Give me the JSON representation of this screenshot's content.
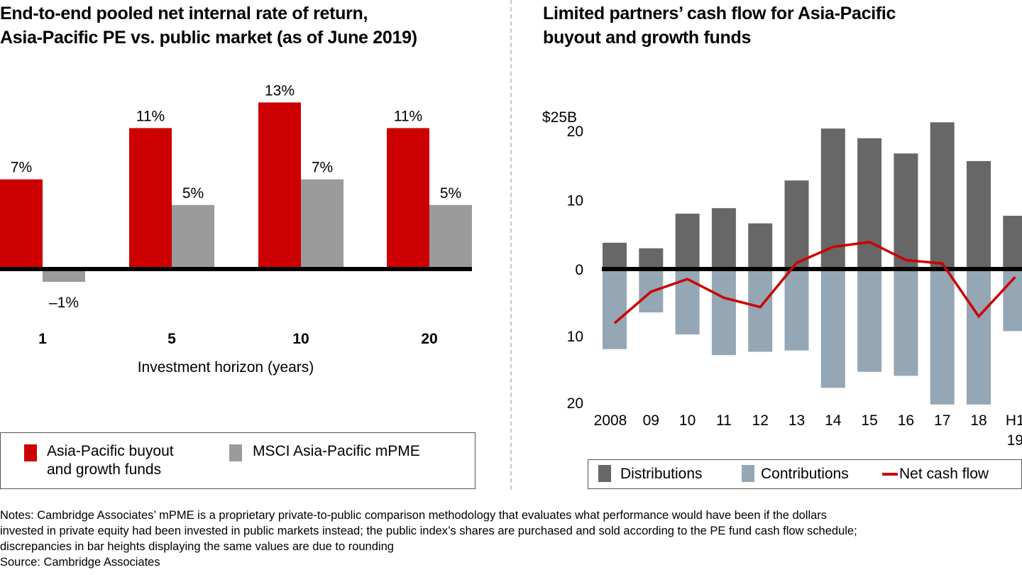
{
  "colors": {
    "pe_red": "#cc0000",
    "mpme_gray": "#9b9b9b",
    "distributions": "#676767",
    "contributions": "#95a6b4",
    "net_line": "#cc0000",
    "axis": "#000000"
  },
  "left": {
    "title_line1": "End-to-end pooled net internal rate of return,",
    "title_line2": "Asia-Pacific PE vs. public market (as of June 2019)",
    "legend": [
      {
        "label_line1": "Asia-Pacific buyout",
        "label_line2": "and growth funds",
        "color_key": "pe_red"
      },
      {
        "label_line1": "MSCI Asia-Pacific mPME",
        "label_line2": "",
        "color_key": "mpme_gray"
      }
    ]
  },
  "right": {
    "title_line1": "Limited partners’ cash flow for Asia-Pacific",
    "title_line2": "buyout and growth funds",
    "legend": [
      {
        "label": "Distributions",
        "color_key": "distributions"
      },
      {
        "label": "Contributions",
        "color_key": "contributions"
      },
      {
        "label": "Net cash flow",
        "color_key": "net_line"
      }
    ]
  },
  "notes": {
    "line1": "Notes: Cambridge Associates’ mPME is a proprietary private-to-public comparison methodology that evaluates what performance would have been if the dollars",
    "line2": "invested in private equity had been invested in public markets instead; the public index’s shares are purchased and sold according to the PE fund cash flow schedule;",
    "line3": "discrepancies in bar heights displaying the same values are due to rounding",
    "source": "Source: Cambridge Associates"
  },
  "chart_data": [
    {
      "type": "bar",
      "title": "End-to-end pooled net internal rate of return, Asia-Pacific PE vs. public market (as of June 2019)",
      "xlabel": "Investment horizon (years)",
      "ylabel": "",
      "categories": [
        "1",
        "5",
        "10",
        "20"
      ],
      "series": [
        {
          "name": "Asia-Pacific buyout and growth funds",
          "values": [
            7,
            11,
            13,
            11
          ],
          "labels": [
            "7%",
            "11%",
            "13%",
            "11%"
          ]
        },
        {
          "name": "MSCI Asia-Pacific mPME",
          "values": [
            -1,
            5,
            7,
            5
          ],
          "labels": [
            "–1%",
            "5%",
            "7%",
            "5%"
          ]
        }
      ],
      "ylim": [
        -2,
        14
      ],
      "grid": false,
      "legend": "bottom"
    },
    {
      "type": "bar",
      "title": "Limited partners’ cash flow for Asia-Pacific buyout and growth funds",
      "xlabel": "",
      "ylabel": "$B",
      "categories": [
        "2008",
        "09",
        "10",
        "11",
        "12",
        "13",
        "14",
        "15",
        "16",
        "17",
        "18",
        "H1 19"
      ],
      "category_labels": [
        [
          "2008"
        ],
        [
          "09"
        ],
        [
          "10"
        ],
        [
          "11"
        ],
        [
          "12"
        ],
        [
          "13"
        ],
        [
          "14"
        ],
        [
          "15"
        ],
        [
          "16"
        ],
        [
          "17"
        ],
        [
          "18"
        ],
        [
          "H1",
          "19"
        ]
      ],
      "series": [
        {
          "name": "Distributions",
          "kind": "bar",
          "values": [
            3.8,
            3.0,
            8.0,
            8.8,
            6.6,
            12.8,
            20.3,
            18.9,
            16.7,
            21.2,
            15.6,
            7.7
          ]
        },
        {
          "name": "Contributions",
          "kind": "bar",
          "values": [
            -12.0,
            -6.5,
            -9.8,
            -12.9,
            -12.4,
            -12.2,
            -17.8,
            -15.4,
            -16.0,
            -20.3,
            -20.3,
            -9.3
          ]
        },
        {
          "name": "Net cash flow",
          "kind": "line",
          "values": [
            -8.1,
            -3.4,
            -1.5,
            -4.3,
            -5.7,
            0.9,
            3.2,
            3.9,
            1.3,
            0.8,
            -7.1,
            -1.2
          ]
        }
      ],
      "yticks": [
        {
          "value": 25,
          "label": "$25B"
        },
        {
          "value": 20,
          "label": "20"
        },
        {
          "value": 10,
          "label": "10"
        },
        {
          "value": 0,
          "label": "0"
        },
        {
          "value": -10,
          "label": "10"
        },
        {
          "value": -20,
          "label": "20"
        }
      ],
      "ylim": [
        -20,
        25
      ],
      "grid": false,
      "legend": "bottom"
    }
  ]
}
